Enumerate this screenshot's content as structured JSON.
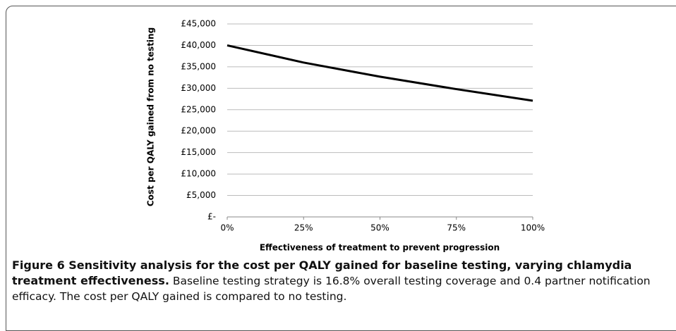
{
  "chart_data": {
    "type": "line",
    "x_label": "Effectiveness of treatment to prevent progression",
    "y_label": "Cost per QALY gained from no testing",
    "x": [
      0,
      25,
      50,
      75,
      100
    ],
    "series": [
      {
        "name": "Cost per QALY",
        "color": "#000000",
        "values": [
          40000,
          36000,
          32700,
          29800,
          27100
        ]
      }
    ],
    "xlim": [
      0,
      100
    ],
    "xticks": [
      {
        "value": 0,
        "label": "0%"
      },
      {
        "value": 25,
        "label": "25%"
      },
      {
        "value": 50,
        "label": "50%"
      },
      {
        "value": 75,
        "label": "75%"
      },
      {
        "value": 100,
        "label": "100%"
      }
    ],
    "ylim": [
      0,
      45000
    ],
    "yticks": [
      {
        "value": 0,
        "label": "£-"
      },
      {
        "value": 5000,
        "label": "£5,000"
      },
      {
        "value": 10000,
        "label": "£10,000"
      },
      {
        "value": 15000,
        "label": "£15,000"
      },
      {
        "value": 20000,
        "label": "£20,000"
      },
      {
        "value": 25000,
        "label": "£25,000"
      },
      {
        "value": 30000,
        "label": "£30,000"
      },
      {
        "value": 35000,
        "label": "£35,000"
      },
      {
        "value": 40000,
        "label": "£40,000"
      },
      {
        "value": 45000,
        "label": "£45,000"
      }
    ],
    "grid": true
  },
  "caption": {
    "title": "Figure 6 Sensitivity analysis for the cost per QALY gained for baseline testing, varying chlamydia treatment effectiveness.",
    "text": "Baseline testing strategy is 16.8% overall testing coverage and 0.4 partner notification efficacy. The cost per QALY gained is compared to no testing."
  }
}
